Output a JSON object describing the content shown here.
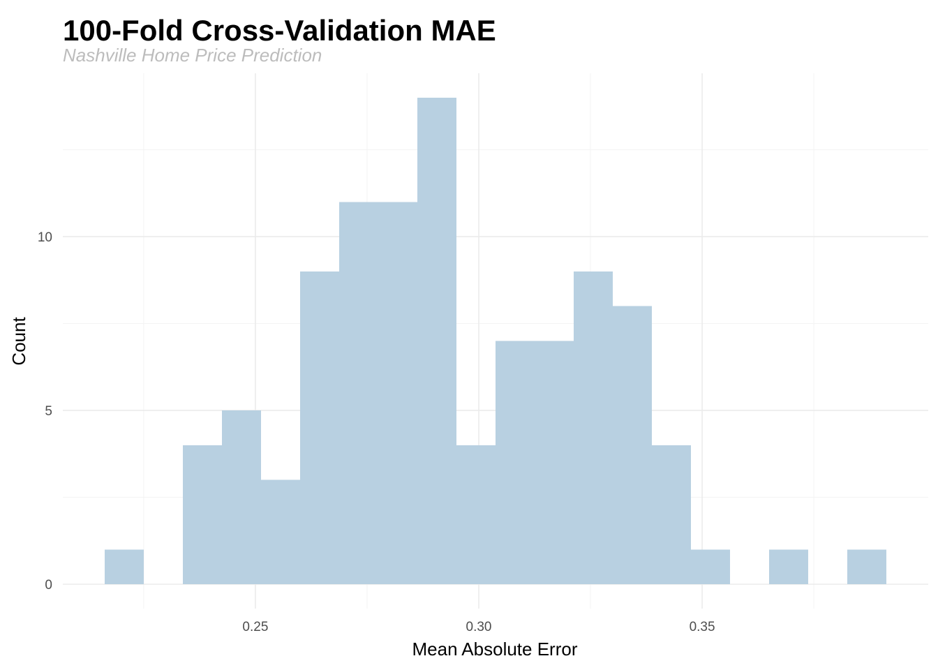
{
  "chart_data": {
    "type": "bar",
    "title": "100-Fold Cross-Validation MAE",
    "subtitle": "Nashville Home Price Prediction",
    "xlabel": "Mean Absolute Error",
    "ylabel": "Count",
    "bin_width": 0.00875,
    "bins": [
      {
        "x0": 0.21625,
        "x1": 0.225,
        "count": 1
      },
      {
        "x0": 0.225,
        "x1": 0.23375,
        "count": 0
      },
      {
        "x0": 0.23375,
        "x1": 0.2425,
        "count": 4
      },
      {
        "x0": 0.2425,
        "x1": 0.25125,
        "count": 5
      },
      {
        "x0": 0.25125,
        "x1": 0.26,
        "count": 3
      },
      {
        "x0": 0.26,
        "x1": 0.26875,
        "count": 9
      },
      {
        "x0": 0.26875,
        "x1": 0.2775,
        "count": 11
      },
      {
        "x0": 0.2775,
        "x1": 0.28625,
        "count": 11
      },
      {
        "x0": 0.28625,
        "x1": 0.295,
        "count": 14
      },
      {
        "x0": 0.295,
        "x1": 0.30375,
        "count": 4
      },
      {
        "x0": 0.30375,
        "x1": 0.3125,
        "count": 7
      },
      {
        "x0": 0.3125,
        "x1": 0.32125,
        "count": 7
      },
      {
        "x0": 0.32125,
        "x1": 0.33,
        "count": 9
      },
      {
        "x0": 0.33,
        "x1": 0.33875,
        "count": 8
      },
      {
        "x0": 0.33875,
        "x1": 0.3475,
        "count": 4
      },
      {
        "x0": 0.3475,
        "x1": 0.35625,
        "count": 1
      },
      {
        "x0": 0.35625,
        "x1": 0.365,
        "count": 0
      },
      {
        "x0": 0.365,
        "x1": 0.37375,
        "count": 1
      },
      {
        "x0": 0.37375,
        "x1": 0.3825,
        "count": 0
      },
      {
        "x0": 0.3825,
        "x1": 0.39125,
        "count": 1
      }
    ],
    "xlim": [
      0.2069,
      0.4006
    ],
    "ylim": [
      -0.7,
      14.7
    ],
    "x_ticks": [
      {
        "value": 0.25,
        "label": "0.25"
      },
      {
        "value": 0.3,
        "label": "0.30"
      },
      {
        "value": 0.35,
        "label": "0.35"
      }
    ],
    "x_minor_ticks": [
      0.225,
      0.275,
      0.325,
      0.375
    ],
    "y_ticks": [
      {
        "value": 0,
        "label": "0"
      },
      {
        "value": 5,
        "label": "5"
      },
      {
        "value": 10,
        "label": "10"
      }
    ],
    "y_minor_ticks": [
      2.5,
      7.5,
      12.5
    ],
    "grid": true,
    "legend": false,
    "colors": {
      "fill": "#b8d0e1",
      "grid_major": "#ebebeb",
      "grid_minor": "#f3f3f3"
    }
  }
}
